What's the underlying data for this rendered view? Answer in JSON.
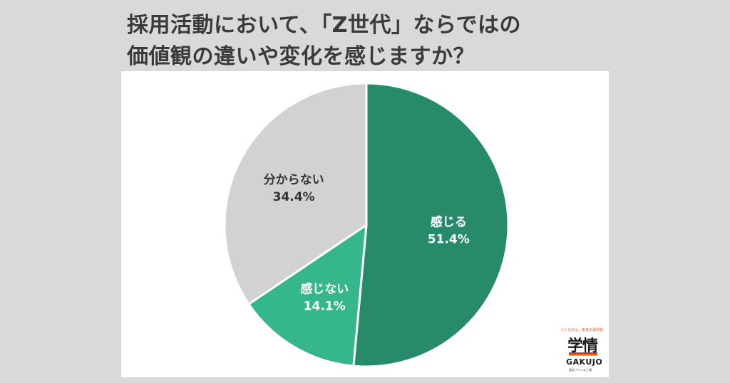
{
  "title_line1": "採用活動において、「Z世代」ならではの",
  "title_line2": "価値観の違いや変化を感じますか？",
  "chart_data": {
    "type": "pie",
    "title": "採用活動において、「Z世代」ならではの価値観の違いや変化を感じますか？",
    "slices": [
      {
        "label": "感じる",
        "value": 51.4,
        "value_text": "51.4%",
        "color": "#268a6b",
        "text_color": "#ffffff"
      },
      {
        "label": "感じない",
        "value": 14.1,
        "value_text": "14.1%",
        "color": "#35b68b",
        "text_color": "#ffffff"
      },
      {
        "label": "分からない",
        "value": 34.4,
        "value_text": "34.4%",
        "color": "#d3d1d1",
        "text_color": "#333333"
      }
    ],
    "start": "12 o'clock",
    "direction": "clockwise"
  },
  "logo": {
    "tagline": "つくるのは、未来の選択肢",
    "mark": "学情",
    "brand": "GAKUJO",
    "sub": "東証プライム上場"
  }
}
